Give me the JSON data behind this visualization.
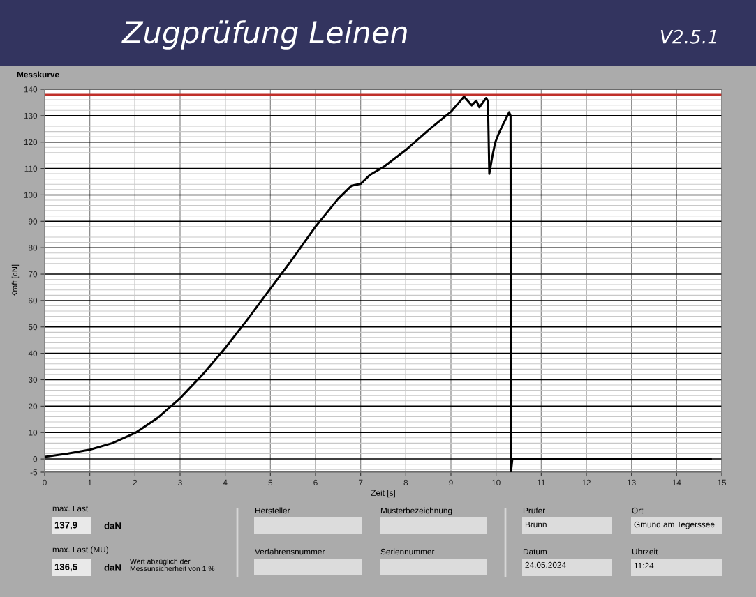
{
  "chart_data": {
    "type": "line",
    "title": "Zugprüfung Leinen",
    "subtitle": "Messkurve",
    "xlabel": "Zeit [s]",
    "ylabel": "Kraft [dN]",
    "x": [
      0,
      0.5,
      1,
      1.5,
      2,
      2.5,
      3,
      3.5,
      4,
      4.5,
      5,
      5.5,
      6,
      6.5,
      6.8,
      7,
      7.2,
      7.5,
      8,
      8.5,
      9,
      9.29,
      9.46,
      9.56,
      9.63,
      9.78,
      9.82,
      9.85,
      9.91,
      9.98,
      10.06,
      10.16,
      10.29,
      10.32,
      10.33,
      10.36,
      11,
      12,
      13,
      14,
      14.76
    ],
    "series": [
      {
        "color": "#000000",
        "values": [
          0.8,
          2,
          3.5,
          6,
          9.8,
          15.5,
          23,
          32,
          42,
          53,
          64.5,
          76,
          88,
          98.5,
          103.5,
          104.2,
          107.5,
          110.5,
          117,
          124.5,
          131.5,
          137.2,
          133.9,
          135.7,
          133.2,
          136.7,
          135.5,
          108,
          114,
          119.8,
          123.3,
          126.9,
          131.3,
          130,
          -4.8,
          0,
          0,
          0,
          0,
          0,
          0
        ]
      }
    ],
    "xlim": [
      0,
      15
    ],
    "xticks": [
      0,
      1,
      2,
      3,
      4,
      5,
      6,
      7,
      8,
      9,
      10,
      11,
      12,
      13,
      14,
      15
    ],
    "ylim": [
      -5,
      140
    ],
    "yticks": [
      -5,
      0,
      10,
      20,
      30,
      40,
      50,
      60,
      70,
      80,
      90,
      100,
      110,
      120,
      130,
      140
    ],
    "grid": true,
    "ref_lines": [
      {
        "axis": "y",
        "value": 137.9,
        "color": "#c0302a"
      }
    ],
    "annotations": [
      "V2.5.1",
      "max. Last",
      "137,9",
      "daN",
      "max. Last (MU)",
      "136,5",
      "daN",
      "Wert abzüglich der\nMessunsicherheit von 1 %",
      "Hersteller",
      "Musterbezeichnung",
      "Verfahrensnummer",
      "Seriennummer",
      "Prüfer",
      "Brunn",
      "Ort",
      "Gmund am Tegerssee",
      "Datum",
      "24.05.2024",
      "Uhrzeit",
      "11:24"
    ]
  }
}
